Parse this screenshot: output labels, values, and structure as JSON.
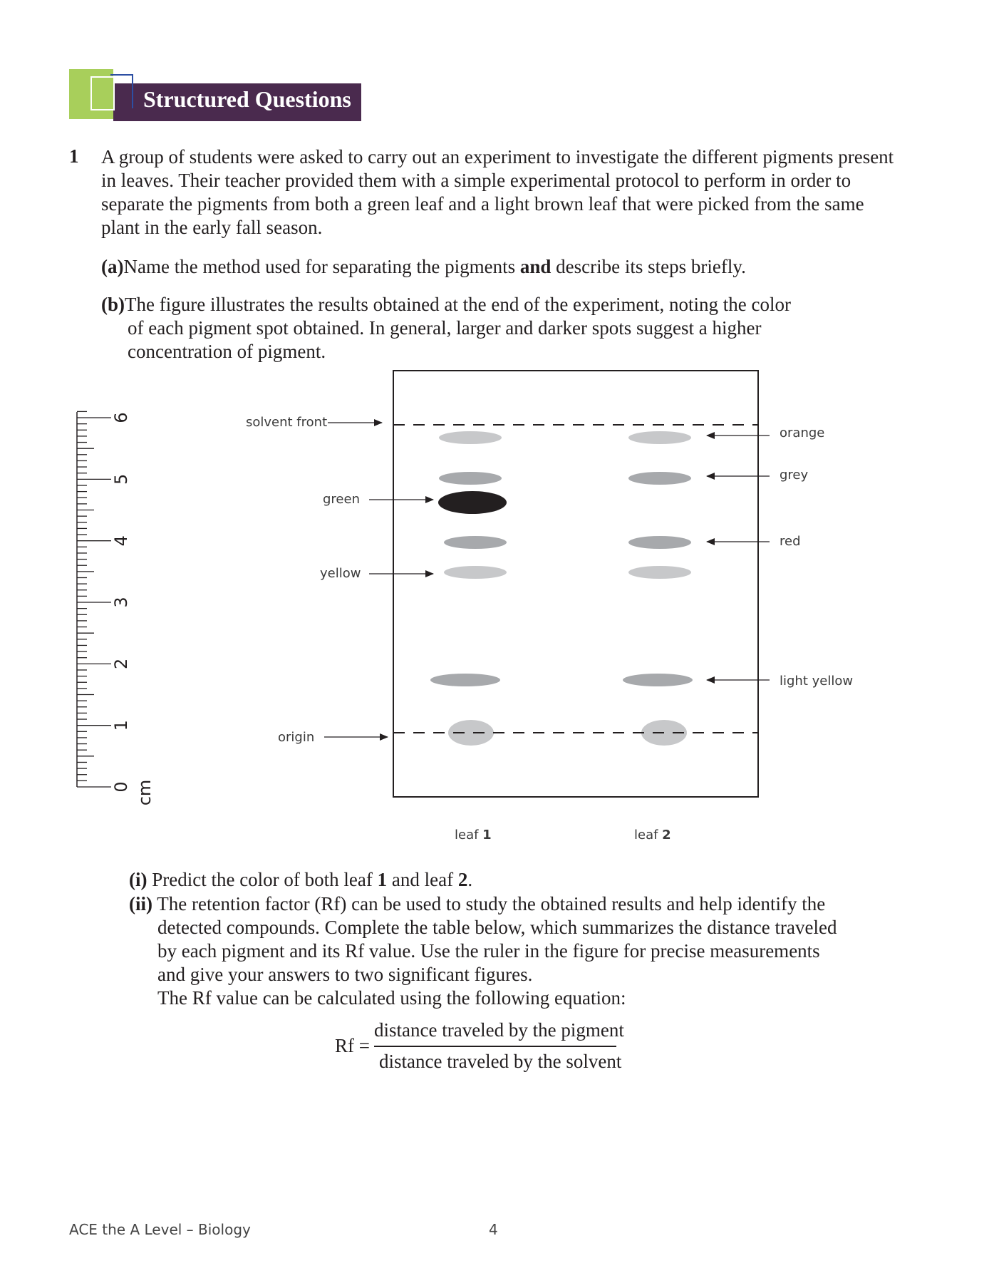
{
  "header": {
    "title": "Structured Questions"
  },
  "question": {
    "number": "1",
    "intro": "A group of students were asked to carry out an experiment to investigate the different pigments present in leaves. Their teacher provided them with a simple experimental protocol to perform in order to separate the pigments from both a green leaf and a light brown leaf that were picked from the same plant in the early fall season.",
    "part_a": {
      "label": "(a)",
      "text_before": "Name the method used for separating the pigments ",
      "bold": "and",
      "text_after": " describe its steps briefly."
    },
    "part_b": {
      "label": "(b)",
      "line1": "The figure illustrates the results obtained at the end of the experiment, noting the color",
      "line2": "of each pigment spot obtained. In general, larger and darker spots suggest a higher",
      "line3": "concentration of pigment."
    },
    "part_i": {
      "label": "(i)",
      "text1": " Predict the color of both leaf ",
      "bold1": "1",
      "text2": " and leaf ",
      "bold2": "2",
      "text3": "."
    },
    "part_ii": {
      "label": "(ii)",
      "line1": " The retention factor (Rf) can be used to study the obtained results and help identify the",
      "line2": "detected compounds. Complete the table below, which summarizes the distance traveled",
      "line3": "by each pigment and its Rf value. Use the ruler in the figure for precise measurements",
      "line4": "and give your answers to two significant figures.",
      "line5": "The Rf value can be calculated using the following equation:"
    },
    "formula": {
      "lhs": "Rf =",
      "numerator": "distance traveled by the pigment",
      "denominator": "distance traveled by the solvent"
    }
  },
  "figure": {
    "ruler": {
      "unit": "cm",
      "ticks": [
        "0",
        "1",
        "2",
        "3",
        "4",
        "5",
        "6"
      ]
    },
    "left_labels": {
      "solvent_front": "solvent front",
      "green": "green",
      "yellow": "yellow",
      "origin": "origin"
    },
    "right_labels": {
      "orange": "orange",
      "grey": "grey",
      "red": "red",
      "light_yellow": "light yellow"
    },
    "lane_labels": {
      "leaf1_text": "leaf ",
      "leaf1_num": "1",
      "leaf2_text": "leaf ",
      "leaf2_num": "2"
    },
    "colors": {
      "dark_spot": "#231f20",
      "grey_spot": "#a7a9ac",
      "light_spot": "#c7c8ca"
    }
  },
  "footer": {
    "book": "ACE the A Level – Biology",
    "page": "4"
  }
}
